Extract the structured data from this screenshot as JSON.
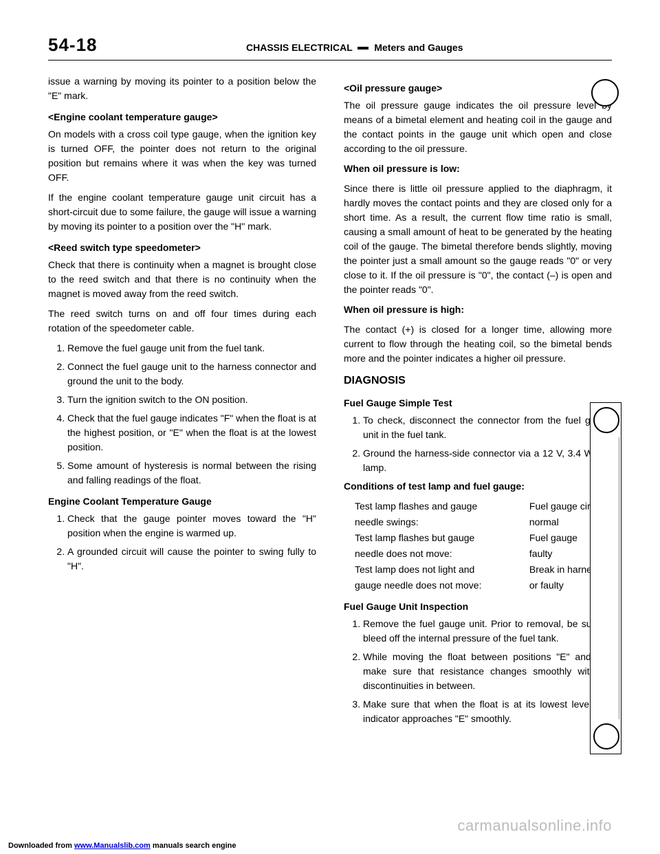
{
  "page_number": "54-18",
  "header_title_left": "CHASSIS ELECTRICAL",
  "header_title_right": "Meters and Gauges",
  "left_col": {
    "intro": "issue a warning by moving its pointer to a position below the \"E\" mark.",
    "sections": [
      {
        "head": "<Engine coolant temperature gauge>",
        "paras": [
          "On models with a cross coil type gauge, when the ignition key is turned OFF, the pointer does not return to the original position but remains where it was when the key was turned OFF.",
          "If the engine coolant temperature gauge unit circuit has a short-circuit due to some failure, the gauge will issue a warning by moving its pointer to a position over the \"H\" mark."
        ]
      },
      {
        "head": "<Reed switch type speedometer>",
        "paras": [
          "Check that there is continuity when a magnet is brought close to the reed switch and that there is no continuity when the magnet is moved away from the reed switch.",
          "The reed switch turns on and off four times during each rotation of the speedometer cable."
        ]
      }
    ],
    "list_items": [
      "Remove the fuel gauge unit from the fuel tank.",
      "Connect the fuel gauge unit to the harness connector and ground the unit to the body.",
      "Turn the ignition switch to the ON position.",
      "Check that the fuel gauge indicates \"F\" when the float is at the highest position, or \"E\" when the float is at the lowest position.",
      "Some amount of hysteresis is normal between the rising and falling readings of the float."
    ],
    "bottom_head": "Engine Coolant Temperature Gauge",
    "bottom_list": [
      "Check that the gauge pointer moves toward the \"H\" position when the engine is warmed up.",
      "A grounded circuit will cause the pointer to swing fully to \"H\"."
    ]
  },
  "right_col": {
    "head": "<Oil pressure gauge>",
    "paras": [
      "The oil pressure gauge indicates the oil pressure level by means of a bimetal element and heating coil in the gauge and the contact points in the gauge unit which open and close according to the oil pressure."
    ],
    "sub_head_1": "When oil pressure is low:",
    "sub_para_1": "Since there is little oil pressure applied to the diaphragm, it hardly moves the contact points and they are closed only for a short time. As a result, the current flow time ratio is small, causing a small amount of heat to be generated by the heating coil of the gauge. The bimetal therefore bends slightly, moving the pointer just a small amount so the gauge reads \"0\" or very close to it. If the oil pressure is \"0\", the contact (–) is open and the pointer reads \"0\".",
    "sub_head_2": "When oil pressure is high:",
    "sub_para_2": "The contact (+) is closed for a longer time, allowing more current to flow through the heating coil, so the bimetal bends more and the pointer indicates a higher oil pressure.",
    "diag_head": "DIAGNOSIS",
    "diag_sub": "Fuel Gauge Simple Test",
    "diag_list": [
      "To check, disconnect the connector from the fuel gauge unit in the fuel tank.",
      "Ground the harness-side connector via a 12 V, 3.4 W test lamp."
    ],
    "cond_head": "Conditions of test lamp and fuel gauge:",
    "cond_rows": [
      {
        "label": "Test lamp flashes and gauge",
        "value": "Fuel gauge circuit"
      },
      {
        "label": "needle swings:",
        "value": "normal"
      },
      {
        "label": "Test lamp flashes but gauge",
        "value": "Fuel gauge"
      },
      {
        "label": "needle does not move:",
        "value": "faulty"
      },
      {
        "label": "Test lamp does not light and",
        "value": "Break in harness"
      },
      {
        "label": "gauge needle does not move:",
        "value": "or faulty"
      }
    ],
    "unit_head": "Fuel Gauge Unit Inspection",
    "unit_list": [
      "Remove the fuel gauge unit. Prior to removal, be sure to bleed off the internal pressure of the fuel tank.",
      "While moving the float between positions \"E\" and \"F\", make sure that resistance changes smoothly with no discontinuities in between.",
      "Make sure that when the float is at its lowest level, the indicator approaches \"E\" smoothly."
    ]
  },
  "watermark": "carmanualsonline.info",
  "footer_prefix": "Downloaded from ",
  "footer_link": "www.Manualslib.com",
  "footer_suffix": " manuals search engine"
}
